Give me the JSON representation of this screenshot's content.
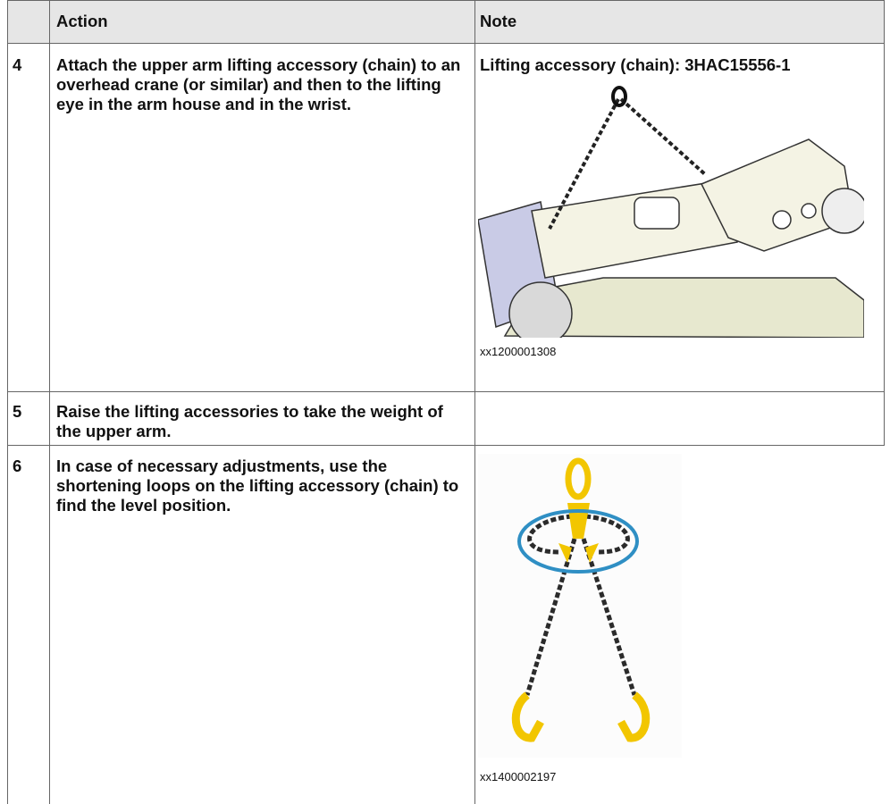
{
  "table": {
    "header": {
      "action": "Action",
      "note": "Note"
    },
    "rows": [
      {
        "step": "4",
        "action": "Attach the upper arm lifting accessory (chain) to an overhead crane (or similar) and then to the lifting eye in the arm house and in the wrist.",
        "note": "Lifting accessory (chain): 3HAC15556-1",
        "figure_id": "xx1200001308"
      },
      {
        "step": "5",
        "action": "Raise the lifting accessories to take the weight of the upper arm."
      },
      {
        "step": "6",
        "action": "In case of necessary adjustments, use the shortening loops on the lifting accessory (chain) to find the level position.",
        "figure_id": "xx1400002197"
      }
    ]
  }
}
